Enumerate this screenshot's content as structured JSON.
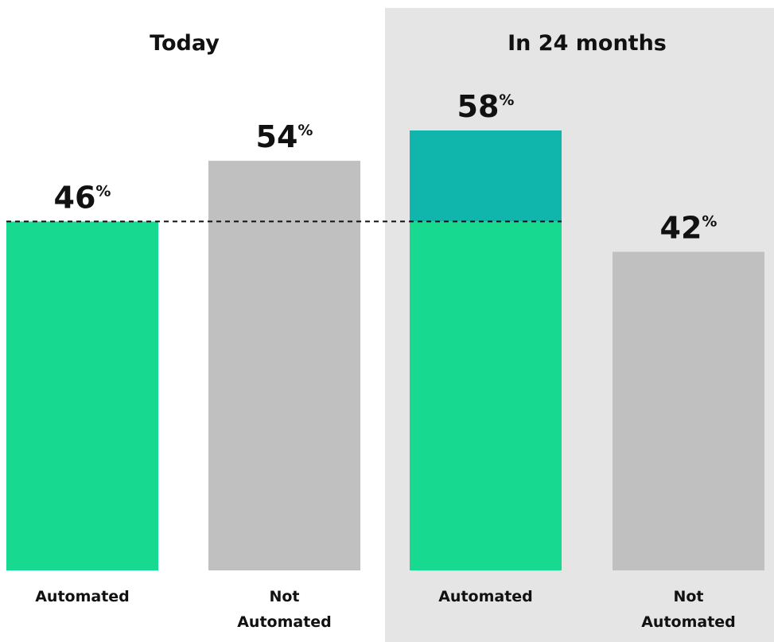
{
  "colors": {
    "automated": "#18D990",
    "automated_growth": "#10B5AB",
    "not_automated": "#BFC0BF",
    "future_panel": "#E4E5E4",
    "reference_line": "#111111"
  },
  "chart_data": {
    "type": "bar",
    "groups": [
      {
        "title": "Today",
        "highlighted": false,
        "bars": [
          {
            "category": "Automated",
            "label_lines": [
              "Automated"
            ],
            "value": 46,
            "display": "46",
            "unit": "%",
            "kind": "automated"
          },
          {
            "category": "Not Automated",
            "label_lines": [
              "Not",
              "Automated"
            ],
            "value": 54,
            "display": "54",
            "unit": "%",
            "kind": "not_automated"
          }
        ]
      },
      {
        "title": "In 24 months",
        "highlighted": true,
        "bars": [
          {
            "category": "Automated",
            "label_lines": [
              "Automated"
            ],
            "value": 58,
            "display": "58",
            "unit": "%",
            "kind": "automated",
            "baseline_value": 46
          },
          {
            "category": "Not Automated",
            "label_lines": [
              "Not",
              "Automated"
            ],
            "value": 42,
            "display": "42",
            "unit": "%",
            "kind": "not_automated"
          }
        ]
      }
    ],
    "reference_line": {
      "value": 46,
      "style": "dashed"
    },
    "ylim": [
      0,
      58
    ],
    "grid": false,
    "legend": "none",
    "title": "",
    "xlabel": "",
    "ylabel": ""
  }
}
